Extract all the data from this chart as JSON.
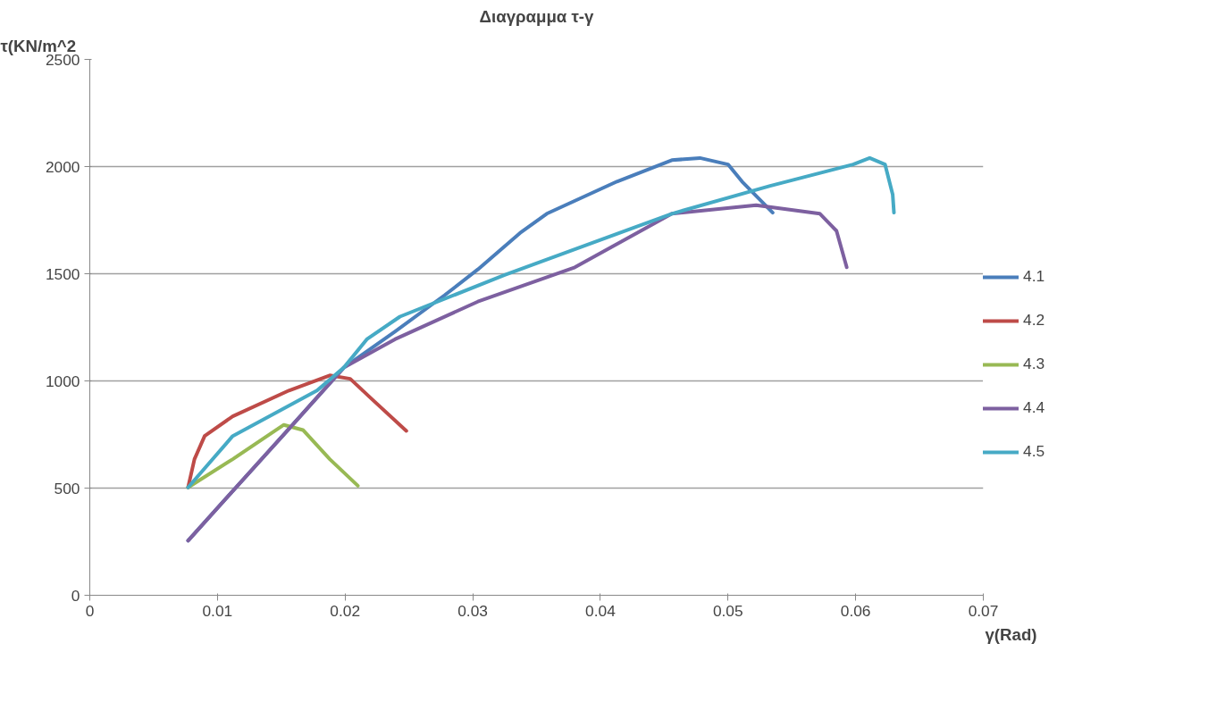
{
  "chart_data": {
    "type": "line",
    "title": "Διαγραμμα τ-γ",
    "ylabel": "τ(KN/m^2",
    "xlabel": "γ(Rad)",
    "xlim": [
      0,
      0.07
    ],
    "xticks": [
      0,
      0.01,
      0.02,
      0.03,
      0.04,
      0.05,
      0.06,
      0.07
    ],
    "ylim": [
      0,
      2500
    ],
    "yticks": [
      0,
      500,
      1000,
      1500,
      2000,
      2500
    ],
    "grid": "y",
    "legend": "right",
    "marker": "none",
    "line_style": "solid",
    "series": [
      {
        "name": "4.1",
        "color": "#4a7ebb",
        "x": [
          0.0077,
          0.0157,
          0.0199,
          0.0239,
          0.0278,
          0.0304,
          0.0337,
          0.0358,
          0.0413,
          0.0456,
          0.0478,
          0.05,
          0.0511,
          0.0535
        ],
        "values": [
          255,
          783,
          1062,
          1230,
          1400,
          1520,
          1690,
          1780,
          1930,
          2030,
          2040,
          2010,
          1930,
          1785
        ]
      },
      {
        "name": "4.2",
        "color": "#be4b48",
        "x": [
          0.0077,
          0.0082,
          0.009,
          0.0112,
          0.0156,
          0.0188,
          0.0204,
          0.0221,
          0.0248
        ],
        "values": [
          503,
          635,
          743,
          835,
          955,
          1026,
          1010,
          915,
          767
        ]
      },
      {
        "name": "4.3",
        "color": "#98b954",
        "x": [
          0.0077,
          0.0112,
          0.0152,
          0.0167,
          0.0188,
          0.021
        ],
        "values": [
          503,
          635,
          795,
          771,
          635,
          511
        ]
      },
      {
        "name": "4.4",
        "color": "#7d60a0",
        "x": [
          0.0077,
          0.0157,
          0.0199,
          0.0239,
          0.0304,
          0.038,
          0.0456,
          0.0522,
          0.0572,
          0.0585,
          0.0593
        ],
        "values": [
          255,
          783,
          1062,
          1194,
          1370,
          1530,
          1780,
          1820,
          1780,
          1700,
          1530
        ]
      },
      {
        "name": "4.5",
        "color": "#46aac5",
        "x": [
          0.0077,
          0.0112,
          0.0178,
          0.0199,
          0.0217,
          0.0243,
          0.0325,
          0.0456,
          0.0533,
          0.0598,
          0.0611,
          0.0623,
          0.0629,
          0.063
        ],
        "values": [
          503,
          743,
          955,
          1062,
          1194,
          1300,
          1494,
          1780,
          1910,
          2010,
          2040,
          2010,
          1870,
          1785
        ]
      }
    ]
  }
}
